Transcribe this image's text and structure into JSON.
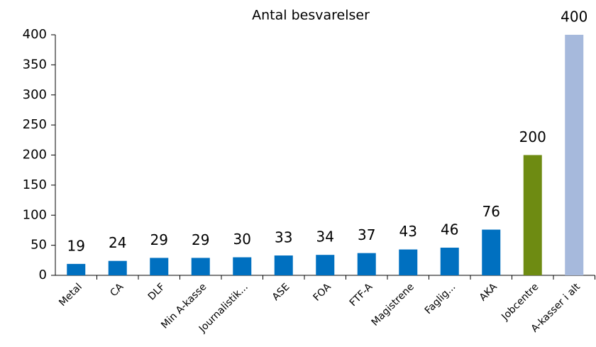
{
  "chart_data": {
    "type": "bar",
    "title": "Antal besvarelser",
    "categories": [
      "Metal",
      "CA",
      "DLF",
      "Min A-kasse",
      "Journalistik...",
      "ASE",
      "FOA",
      "FTF-A",
      "Magistrene",
      "Faglig...",
      "AKA",
      "Jobcentre",
      "A-kasser i alt"
    ],
    "values": [
      19,
      24,
      29,
      29,
      30,
      33,
      34,
      37,
      43,
      46,
      76,
      200,
      400
    ],
    "colors": [
      "#0070c0",
      "#0070c0",
      "#0070c0",
      "#0070c0",
      "#0070c0",
      "#0070c0",
      "#0070c0",
      "#0070c0",
      "#0070c0",
      "#0070c0",
      "#0070c0",
      "#6e8b12",
      "#a6b9dc"
    ],
    "ylim": [
      0,
      400
    ],
    "yticks": [
      0,
      50,
      100,
      150,
      200,
      250,
      300,
      350,
      400
    ],
    "grid": false,
    "data_labels": true
  }
}
